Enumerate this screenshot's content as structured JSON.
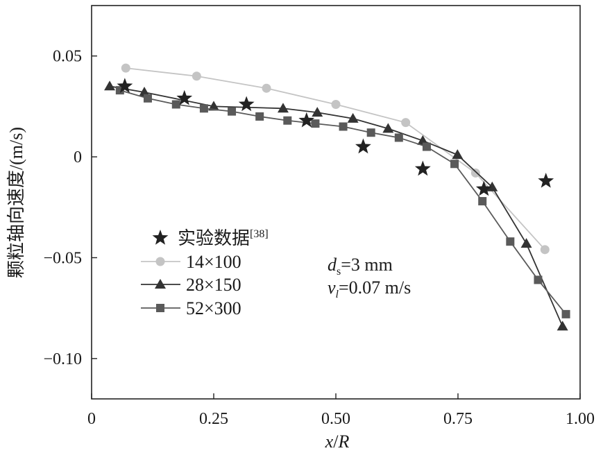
{
  "chart_data": {
    "type": "line",
    "ylabel_prefix": "颗粒轴向速度",
    "ylabel_unit": "/(m/s)",
    "xlabel_var": "x",
    "xlabel_sep": "/",
    "xlabel_ref": "R",
    "xlim": [
      0,
      1.0
    ],
    "ylim": [
      -0.12,
      0.075
    ],
    "x_ticks": [
      0,
      0.25,
      0.5,
      0.75,
      1.0
    ],
    "x_tick_labels": [
      "0",
      "0.25",
      "0.50",
      "0.75",
      "1.00"
    ],
    "y_ticks": [
      0.05,
      0,
      -0.05,
      -0.1
    ],
    "y_tick_labels": [
      "0.05",
      "0",
      "−0.05",
      "−0.10"
    ],
    "grid": false,
    "legend_position": "bottom-left",
    "series": [
      {
        "name": "实验数据",
        "name_ref": "[38]",
        "marker": "star",
        "line": false,
        "color": "#222222",
        "x": [
          0.068,
          0.19,
          0.317,
          0.44,
          0.556,
          0.678,
          0.803,
          0.93
        ],
        "y": [
          0.035,
          0.029,
          0.026,
          0.018,
          0.005,
          -0.006,
          -0.016,
          -0.012
        ]
      },
      {
        "name": "14×100",
        "marker": "circle",
        "line": true,
        "color": "#c4c4c4",
        "x": [
          0.07,
          0.215,
          0.358,
          0.5,
          0.643,
          0.786,
          0.928
        ],
        "y": [
          0.044,
          0.04,
          0.034,
          0.026,
          0.017,
          -0.008,
          -0.046
        ]
      },
      {
        "name": "28×150",
        "marker": "triangle",
        "line": true,
        "color": "#333333",
        "x": [
          0.037,
          0.108,
          0.25,
          0.392,
          0.462,
          0.535,
          0.607,
          0.678,
          0.749,
          0.82,
          0.89,
          0.964
        ],
        "y": [
          0.035,
          0.032,
          0.025,
          0.024,
          0.022,
          0.019,
          0.014,
          0.008,
          0.001,
          -0.015,
          -0.043,
          -0.084
        ]
      },
      {
        "name": "52×300",
        "marker": "square",
        "line": true,
        "color": "#5a5a5a",
        "x": [
          0.058,
          0.115,
          0.173,
          0.23,
          0.287,
          0.344,
          0.401,
          0.458,
          0.515,
          0.572,
          0.629,
          0.686,
          0.743,
          0.8,
          0.857,
          0.914,
          0.971
        ],
        "y": [
          0.033,
          0.029,
          0.026,
          0.024,
          0.0225,
          0.02,
          0.018,
          0.0165,
          0.015,
          0.012,
          0.0095,
          0.005,
          -0.0035,
          -0.022,
          -0.042,
          -0.061,
          -0.078
        ]
      }
    ],
    "annotations": {
      "line1_var": "d",
      "line1_sub": "s",
      "line1_value": "=3 mm",
      "line2_var": "v",
      "line2_sub": "l",
      "line2_value": "=0.07 m/s"
    }
  }
}
